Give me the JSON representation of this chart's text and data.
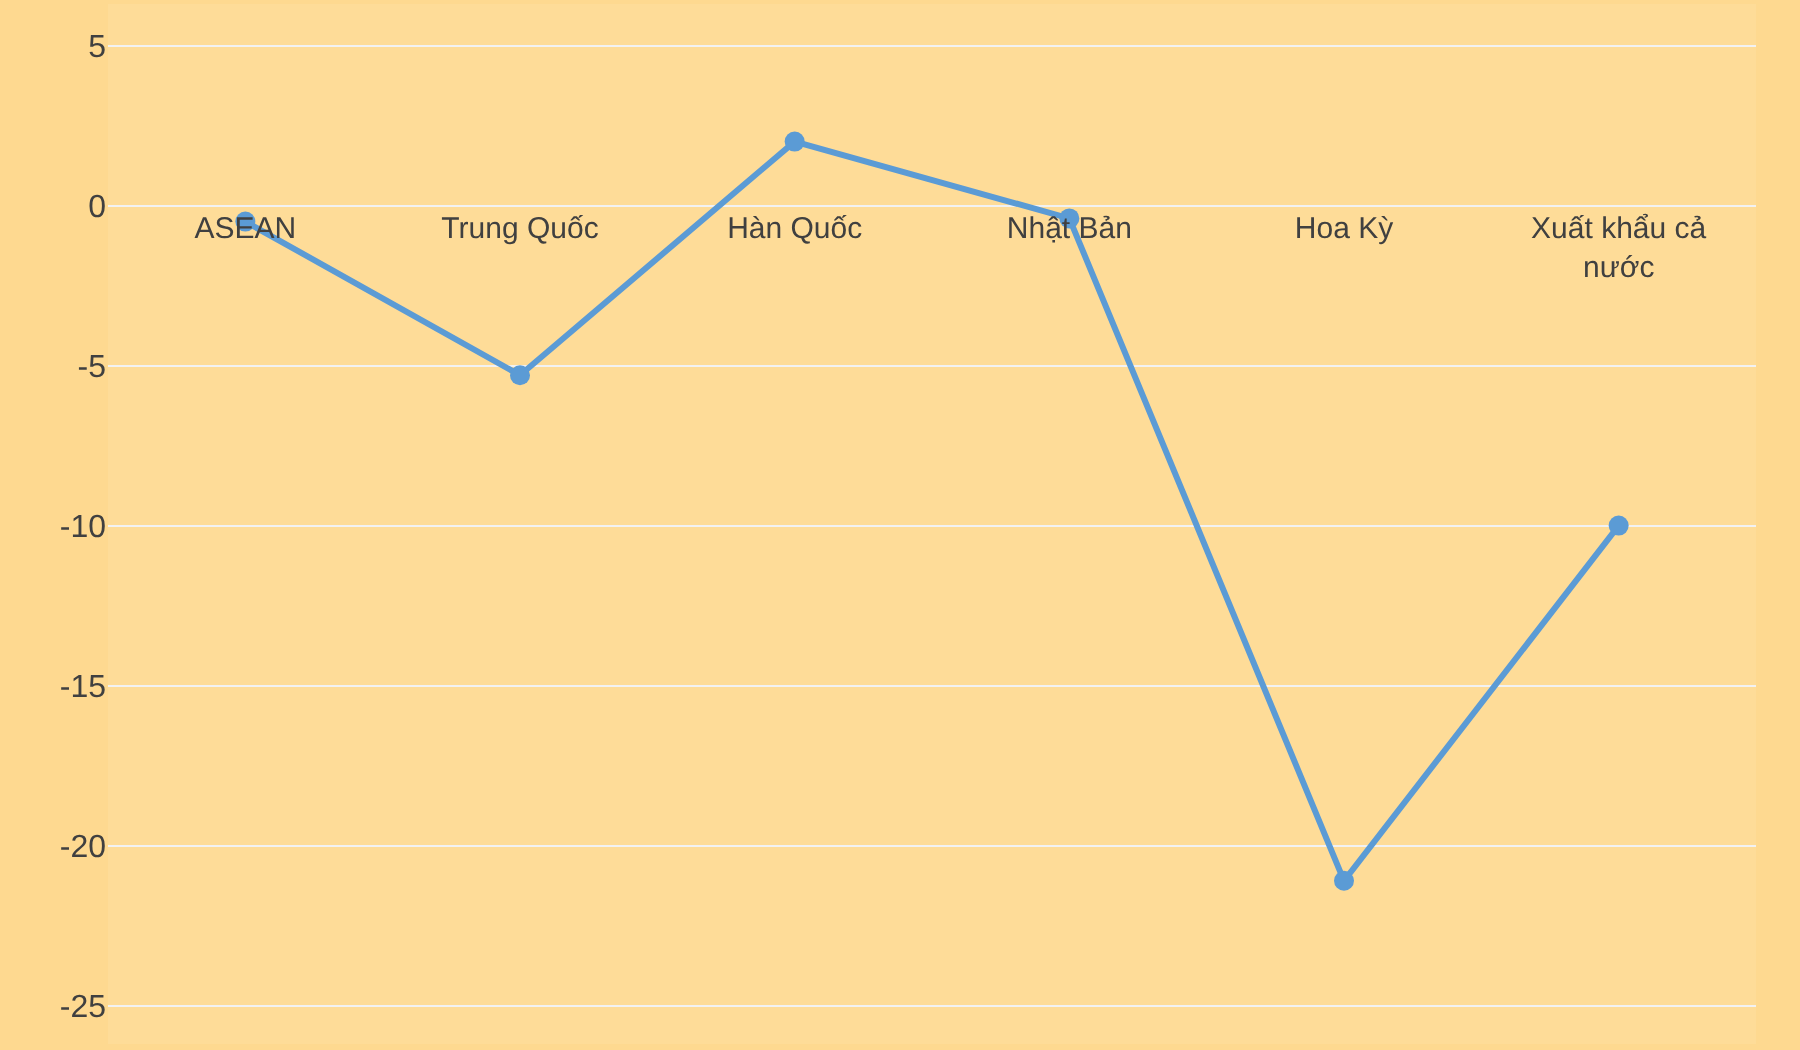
{
  "chart_data": {
    "type": "line",
    "categories": [
      "ASEAN",
      "Trung Quốc",
      "Hàn Quốc",
      "Nhật Bản",
      "Hoa Kỳ",
      "Xuất khẩu cả nước"
    ],
    "series": [
      {
        "color": "#5b9bd5",
        "values": [
          -0.5,
          -5.3,
          2.0,
          -0.4,
          -21.1,
          -10.0
        ]
      }
    ],
    "ylim": [
      -26.2,
      6.3
    ],
    "yticks": [
      -25,
      -20,
      -15,
      -10,
      -5,
      0,
      5
    ],
    "grid": "y",
    "marker": "circle",
    "line_style": "solid"
  }
}
